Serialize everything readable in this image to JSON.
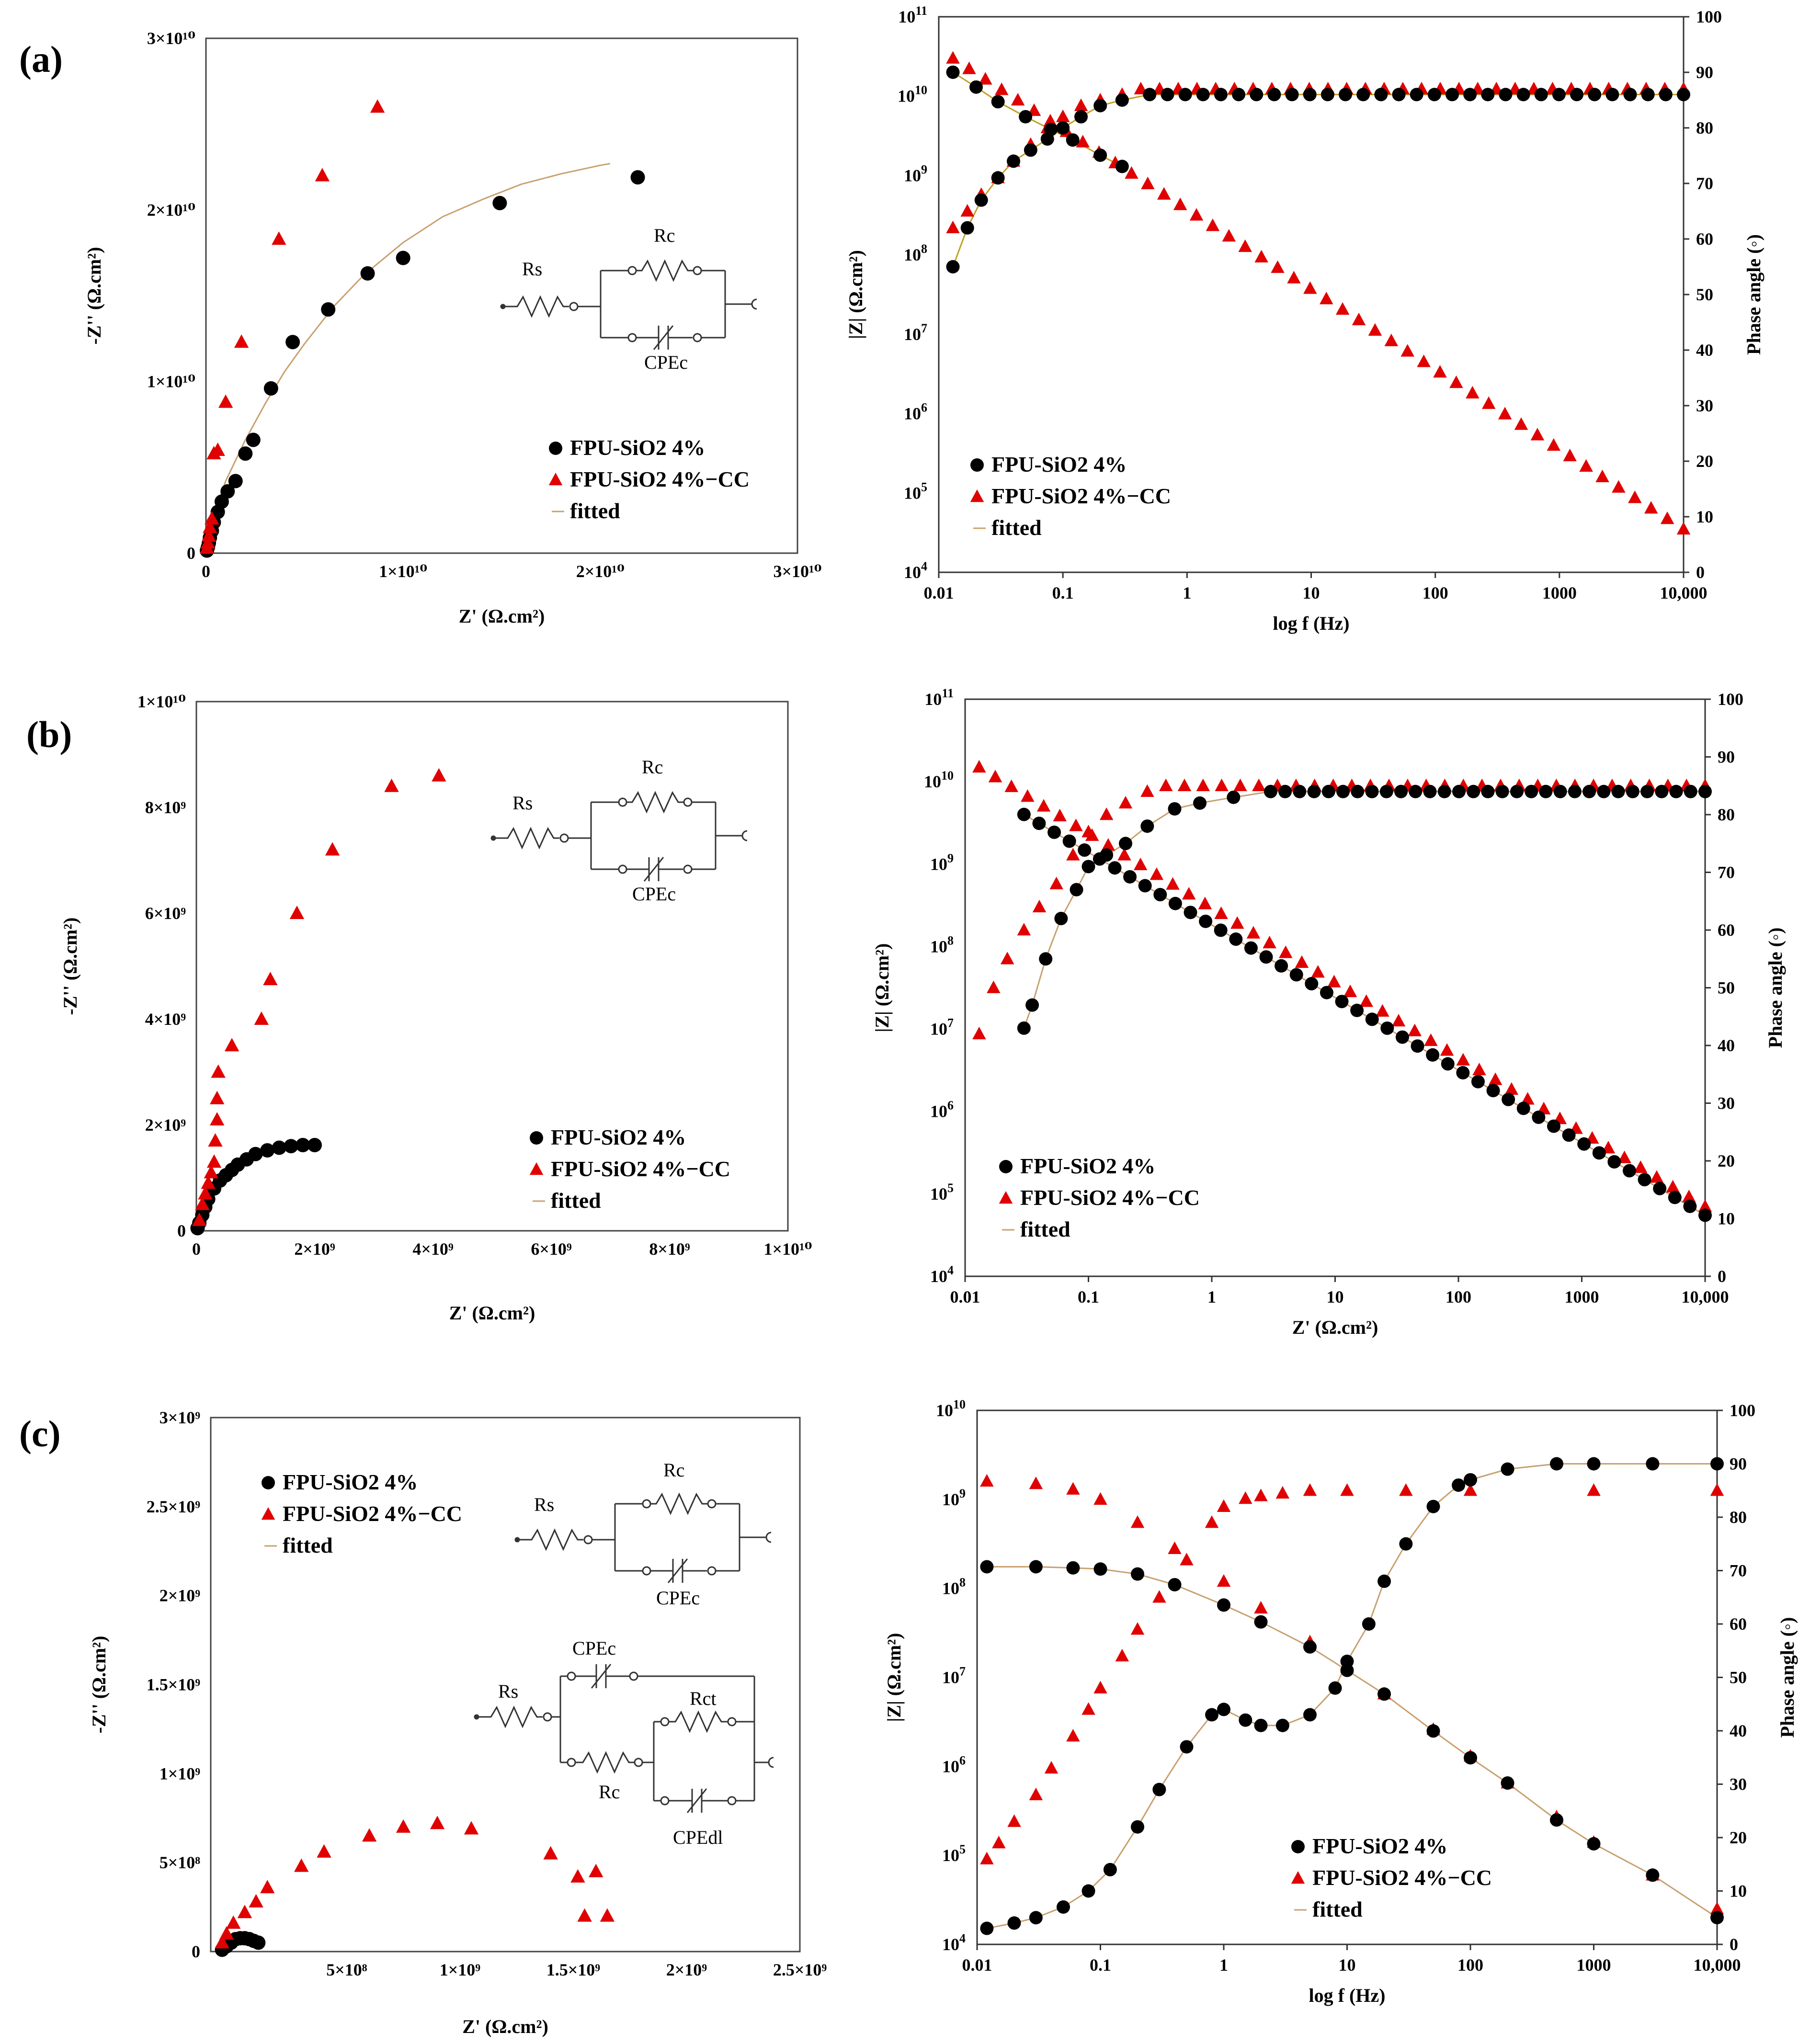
{
  "figure_labels": {
    "a": "(a)",
    "b": "(b)",
    "c": "(c)"
  },
  "legend": {
    "s1": "FPU-SiO2 4%",
    "s2": "FPU-SiO2 4%−CC",
    "fit": "fitted"
  },
  "colors": {
    "s1": "#000000",
    "s2": "#e00000",
    "fit": "#c8a06e",
    "fit_a_bode": "#c0a020",
    "axes": "#000000"
  },
  "circuits": {
    "rc": {
      "rs": "Rs",
      "rc": "Rc",
      "cpe": "CPEc"
    },
    "two_layer": {
      "rs": "Rs",
      "cpec": "CPEc",
      "rct": "Rct",
      "rc": "Rc",
      "cpedl": "CPEdl"
    }
  },
  "chart_data": [
    {
      "id": "a-nyquist",
      "type": "scatter",
      "title": "",
      "xlabel": "Z' (Ω.cm²)",
      "ylabel": "-Z'' (Ω.cm²)",
      "xlim": [
        0,
        30000000000.0
      ],
      "ylim": [
        0,
        30000000000.0
      ],
      "xticks": [
        0,
        10000000000.0,
        20000000000.0,
        30000000000.0
      ],
      "xtick_labels": [
        "0",
        "1×10¹⁰",
        "2×10¹⁰",
        "3×10¹⁰"
      ],
      "yticks": [
        0,
        10000000000.0,
        20000000000.0,
        30000000000.0
      ],
      "ytick_labels": [
        "0",
        "1×10¹⁰",
        "2×10¹⁰",
        "3×10¹⁰"
      ],
      "series": [
        {
          "name": "FPU-SiO2 4%",
          "marker": "circle",
          "x": [
            50000000.0,
            100000000.0,
            150000000.0,
            200000000.0,
            300000000.0,
            400000000.0,
            600000000.0,
            800000000.0,
            1100000000.0,
            1500000000.0,
            2000000000.0,
            2400000000.0,
            3300000000.0,
            4400000000.0,
            6200000000.0,
            8200000000.0,
            10000000000.0,
            14900000000.0,
            21900000000.0
          ],
          "y": [
            150000000.0,
            350000000.0,
            600000000.0,
            900000000.0,
            1300000000.0,
            1800000000.0,
            2400000000.0,
            3000000000.0,
            3600000000.0,
            4200000000.0,
            5800000000.0,
            6600000000.0,
            9600000000.0,
            12300000000.0,
            14200000000.0,
            16300000000.0,
            17200000000.0,
            20400000000.0,
            21900000000.0
          ]
        },
        {
          "name": "FPU-SiO2 4%−CC",
          "marker": "triangle",
          "x": [
            50000000.0,
            100000000.0,
            150000000.0,
            200000000.0,
            300000000.0,
            400000000.0,
            600000000.0,
            1000000000.0,
            1800000000.0,
            3700000000.0,
            5900000000.0,
            8700000000.0
          ],
          "y": [
            300000000.0,
            600000000.0,
            1000000000.0,
            1500000000.0,
            2000000000.0,
            5800000000.0,
            6000000000.0,
            8800000000.0,
            12300000000.0,
            18300000000.0,
            22000000000.0,
            26000000000.0
          ]
        },
        {
          "name": "fitted",
          "marker": "line",
          "x": [
            0,
            200000000.0,
            500000000.0,
            1000000000.0,
            2000000000.0,
            3000000000.0,
            4000000000.0,
            5000000000.0,
            6500000000.0,
            8000000000.0,
            10000000000.0,
            12000000000.0,
            14000000000.0,
            16000000000.0,
            18000000000.0,
            20000000000.0,
            20500000000.0
          ],
          "y": [
            0,
            1200000000.0,
            2500000000.0,
            4200000000.0,
            6600000000.0,
            8700000000.0,
            10600000000.0,
            12200000000.0,
            14400000000.0,
            16200000000.0,
            18100000000.0,
            19600000000.0,
            20600000000.0,
            21500000000.0,
            22100000000.0,
            22600000000.0,
            22700000000.0
          ]
        }
      ]
    },
    {
      "id": "a-bode",
      "type": "scatter",
      "title": "",
      "xlabel": "log f (Hz)",
      "ylabel": "|Z| (Ω.cm²)",
      "y2label": "Phase angle (◦)",
      "xlim": [
        0.01,
        10000
      ],
      "ylim": [
        10000,
        100000000000.0
      ],
      "y2lim": [
        0,
        100
      ],
      "xtick_labels": [
        "0.01",
        "0.1",
        "1",
        "10",
        "100",
        "1000",
        "10,000"
      ],
      "y2ticks": [
        0,
        10,
        20,
        30,
        40,
        50,
        60,
        70,
        80,
        90,
        100
      ],
      "series": [
        {
          "name": "FPU-SiO2 4% |Z|",
          "marker": "circle",
          "axis": "left",
          "z0": 20000000000.0,
          "z1": 70000.0,
          "x": [
            0.013,
            0.02,
            0.03,
            0.05,
            0.08,
            0.12,
            0.2,
            0.3
          ],
          "y": [
            20000000000.0,
            13000000000.0,
            8500000000.0,
            5500000000.0,
            3800000000.0,
            2800000000.0,
            1800000000.0,
            1300000000.0
          ]
        },
        {
          "name": "FPU-SiO2 4%−CC |Z|",
          "marker": "triangle",
          "axis": "left",
          "z0": 30000000000.0,
          "z1": 35000.0
        },
        {
          "name": "FPU-SiO2 4% phase",
          "marker": "circle",
          "axis": "right",
          "x": [
            0.013,
            0.017,
            0.022,
            0.03,
            0.04,
            0.055,
            0.075,
            0.1,
            0.14,
            0.2,
            0.3,
            0.5
          ],
          "y": [
            55,
            62,
            67,
            71,
            74,
            76,
            78,
            80,
            82,
            84,
            85,
            86
          ],
          "plateau": 86
        },
        {
          "name": "FPU-SiO2 4%−CC phase",
          "marker": "triangle",
          "axis": "right",
          "x": [
            0.013,
            0.017,
            0.022,
            0.03,
            0.04,
            0.055,
            0.075,
            0.1,
            0.14,
            0.2,
            0.3
          ],
          "y": [
            62,
            65,
            68,
            71,
            74,
            77,
            80,
            82,
            84,
            85,
            86
          ],
          "plateau": 87
        },
        {
          "name": "fitted",
          "marker": "line"
        }
      ]
    },
    {
      "id": "b-nyquist",
      "type": "scatter",
      "title": "",
      "xlabel": "Z' (Ω.cm²)",
      "ylabel": "-Z'' (Ω.cm²)",
      "xlim": [
        0,
        10000000000.0
      ],
      "ylim": [
        0,
        10000000000.0
      ],
      "xticks": [
        0,
        2000000000.0,
        4000000000.0,
        6000000000.0,
        8000000000.0,
        10000000000.0
      ],
      "xtick_labels": [
        "0",
        "2×10⁹",
        "4×10⁹",
        "6×10⁹",
        "8×10⁹",
        "1×10¹⁰"
      ],
      "yticks": [
        0,
        2000000000.0,
        4000000000.0,
        6000000000.0,
        8000000000.0,
        10000000000.0
      ],
      "ytick_labels": [
        "0",
        "2×10⁹",
        "4×10⁹",
        "6×10⁹",
        "8×10⁹",
        "1×10¹⁰"
      ],
      "series": [
        {
          "name": "FPU-SiO2 4%",
          "marker": "circle",
          "x": [
            20000000.0,
            50000000.0,
            100000000.0,
            150000000.0,
            200000000.0,
            300000000.0,
            400000000.0,
            500000000.0,
            600000000.0,
            700000000.0,
            850000000.0,
            1000000000.0,
            1200000000.0,
            1400000000.0,
            1600000000.0,
            1800000000.0,
            2000000000.0
          ],
          "y": [
            50000000.0,
            150000000.0,
            300000000.0,
            450000000.0,
            600000000.0,
            800000000.0,
            950000000.0,
            1050000000.0,
            1150000000.0,
            1250000000.0,
            1350000000.0,
            1450000000.0,
            1520000000.0,
            1570000000.0,
            1600000000.0,
            1620000000.0,
            1620000000.0
          ]
        },
        {
          "name": "FPU-SiO2 4%−CC",
          "marker": "triangle",
          "x": [
            50000000.0,
            100000000.0,
            150000000.0,
            200000000.0,
            250000000.0,
            300000000.0,
            320000000.0,
            350000000.0,
            350000000.0,
            370000000.0,
            600000000.0,
            1100000000.0,
            1250000000.0,
            1700000000.0,
            2300000000.0,
            3300000000.0,
            4100000000.0
          ],
          "y": [
            200000000.0,
            500000000.0,
            700000000.0,
            900000000.0,
            1100000000.0,
            1300000000.0,
            1700000000.0,
            2100000000.0,
            2500000000.0,
            3000000000.0,
            3500000000.0,
            4000000000.0,
            4750000000.0,
            6000000000.0,
            7200000000.0,
            8400000000.0,
            8600000000.0
          ]
        },
        {
          "name": "fitted",
          "marker": "line",
          "x": [
            0,
            100000000.0,
            200000000.0,
            400000000.0,
            600000000.0,
            800000000.0,
            1000000000.0,
            1200000000.0,
            1400000000.0,
            1600000000.0,
            1800000000.0,
            2000000000.0
          ],
          "y": [
            0,
            300000000.0,
            580000000.0,
            940000000.0,
            1140000000.0,
            1300000000.0,
            1420000000.0,
            1500000000.0,
            1560000000.0,
            1590000000.0,
            1600000000.0,
            1600000000.0
          ]
        }
      ]
    },
    {
      "id": "b-bode",
      "type": "scatter",
      "title": "",
      "xlabel": "Z' (Ω.cm²)",
      "ylabel": "|Z| (Ω.cm²)",
      "y2label": "Phase angle (◦)",
      "xlim": [
        0.01,
        10000
      ],
      "ylim": [
        10000,
        100000000000.0
      ],
      "y2lim": [
        0,
        100
      ],
      "xtick_labels": [
        "0.01",
        "0.1",
        "1",
        "10",
        "100",
        "1000",
        "10,000"
      ],
      "y2ticks": [
        0,
        10,
        20,
        30,
        40,
        50,
        60,
        70,
        80,
        90,
        100
      ],
      "series": [
        {
          "name": "FPU-SiO2 4% |Z|",
          "marker": "circle",
          "axis": "left",
          "z0": 4000000000.0,
          "z1": 55000.0,
          "f0": 0.03
        },
        {
          "name": "FPU-SiO2 4%−CC |Z|",
          "marker": "triangle",
          "axis": "left",
          "z0": 15000000000.0,
          "z1": 70000.0,
          "f0": 0.013
        },
        {
          "name": "FPU-SiO2 4% phase",
          "marker": "circle",
          "axis": "right",
          "x": [
            0.03,
            0.035,
            0.045,
            0.06,
            0.08,
            0.1,
            0.14,
            0.2,
            0.3,
            0.5,
            0.8,
            1.5,
            3
          ],
          "y": [
            43,
            47,
            55,
            62,
            67,
            71,
            73,
            75,
            78,
            81,
            82,
            83,
            84
          ],
          "plateau": 84
        },
        {
          "name": "FPU-SiO2 4%−CC phase",
          "marker": "triangle",
          "axis": "right",
          "x": [
            0.013,
            0.017,
            0.022,
            0.03,
            0.04,
            0.055,
            0.075,
            0.1,
            0.14,
            0.2,
            0.3
          ],
          "y": [
            42,
            50,
            55,
            60,
            64,
            68,
            73,
            77,
            80,
            82,
            84
          ],
          "plateau": 85
        },
        {
          "name": "fitted",
          "marker": "line"
        }
      ]
    },
    {
      "id": "c-nyquist",
      "type": "scatter",
      "title": "",
      "xlabel": "Z' (Ω.cm²)",
      "ylabel": "-Z'' (Ω.cm²)",
      "xlim": [
        -100000000.0,
        2500000000.0
      ],
      "ylim": [
        0,
        3000000000.0
      ],
      "xticks": [
        500000000.0,
        1000000000.0,
        1500000000.0,
        2000000000.0,
        2500000000.0
      ],
      "xtick_labels": [
        "5×10⁸",
        "1×10⁹",
        "1.5×10⁹",
        "2×10⁹",
        "2.5×10⁹"
      ],
      "yticks": [
        0,
        500000000.0,
        1000000000.0,
        1500000000.0,
        2000000000.0,
        2500000000.0,
        3000000000.0
      ],
      "ytick_labels": [
        "0",
        "5×10⁸",
        "1×10⁹",
        "1.5×10⁹",
        "2×10⁹",
        "2.5×10⁹",
        "3×10⁹"
      ],
      "series": [
        {
          "name": "FPU-SiO2 4%",
          "marker": "circle",
          "x": [
            -50000000.0,
            -30000000.0,
            -10000000.0,
            10000000.0,
            30000000.0,
            50000000.0,
            70000000.0,
            90000000.0,
            110000000.0
          ],
          "y": [
            10000000.0,
            30000000.0,
            50000000.0,
            70000000.0,
            75000000.0,
            75000000.0,
            70000000.0,
            60000000.0,
            50000000.0
          ]
        },
        {
          "name": "FPU-SiO2 4%−CC",
          "marker": "triangle",
          "x": [
            -50000000.0,
            -30000000.0,
            0.0,
            50000000.0,
            100000000.0,
            150000000.0,
            300000000.0,
            400000000.0,
            600000000.0,
            750000000.0,
            900000000.0,
            1050000000.0,
            1400000000.0,
            1520000000.0,
            1600000000.0,
            1550000000.0,
            1650000000.0
          ],
          "y": [
            50000000.0,
            100000000.0,
            160000000.0,
            220000000.0,
            280000000.0,
            360000000.0,
            480000000.0,
            560000000.0,
            650000000.0,
            700000000.0,
            720000000.0,
            690000000.0,
            550000000.0,
            420000000.0,
            450000000.0,
            200000000.0,
            200000000.0
          ]
        }
      ]
    },
    {
      "id": "c-bode",
      "type": "scatter",
      "title": "",
      "xlabel": "log f (Hz)",
      "ylabel": "|Z| (Ω.cm²)",
      "y2label": "Phase angle (◦)",
      "xlim": [
        0.01,
        10000
      ],
      "ylim": [
        10000,
        10000000000.0
      ],
      "y2lim": [
        0,
        100
      ],
      "xtick_labels": [
        "0.01",
        "0.1",
        "1",
        "10",
        "100",
        "1000",
        "10,000"
      ],
      "y2ticks": [
        0,
        10,
        20,
        30,
        40,
        50,
        60,
        70,
        80,
        90,
        100
      ],
      "series": [
        {
          "name": "FPU-SiO2 4% |Z|",
          "marker": "circle",
          "axis": "left",
          "x": [
            0.012,
            0.03,
            0.06,
            0.1,
            0.2,
            0.4,
            1,
            2,
            5,
            10,
            20,
            50,
            100,
            200,
            500,
            1000,
            3000,
            10000
          ],
          "y": [
            175000000.0,
            175000000.0,
            170000000.0,
            165000000.0,
            145000000.0,
            110000000.0,
            65000000.0,
            42000000.0,
            22000000.0,
            12000000.0,
            6500000.0,
            2500000.0,
            1250000.0,
            650000.0,
            250000.0,
            135000.0,
            60000.0,
            20000.0
          ]
        },
        {
          "name": "FPU-SiO2 4%−CC |Z|",
          "marker": "triangle",
          "axis": "left",
          "x": [
            0.012,
            0.03,
            0.06,
            0.1,
            0.2,
            0.4,
            1,
            2,
            5,
            10,
            20,
            50,
            100,
            200,
            500,
            1000,
            3000,
            10000
          ],
          "y": [
            1600000000.0,
            1500000000.0,
            1300000000.0,
            1000000000.0,
            550000000.0,
            280000000.0,
            120000000.0,
            60000000.0,
            25000000.0,
            13000000.0,
            6500000.0,
            2600000.0,
            1300000.0,
            650000.0,
            270000.0,
            140000.0,
            60000.0,
            25000.0
          ]
        },
        {
          "name": "FPU-SiO2 4% phase",
          "marker": "circle",
          "axis": "right",
          "x": [
            0.012,
            0.02,
            0.03,
            0.05,
            0.08,
            0.12,
            0.2,
            0.3,
            0.5,
            0.8,
            1,
            1.5,
            2,
            3,
            5,
            8,
            10,
            15,
            20,
            30,
            50,
            80,
            100,
            200,
            500,
            1000,
            3000,
            10000
          ],
          "y": [
            3,
            4,
            5,
            7,
            10,
            14,
            22,
            29,
            37,
            43,
            44,
            42,
            41,
            41,
            43,
            48,
            53,
            60,
            68,
            75,
            82,
            86,
            87,
            89,
            90,
            90,
            90,
            90
          ]
        },
        {
          "name": "FPU-SiO2 4%−CC phase",
          "marker": "triangle",
          "axis": "right",
          "x": [
            0.012,
            0.015,
            0.02,
            0.03,
            0.04,
            0.06,
            0.08,
            0.1,
            0.15,
            0.2,
            0.3,
            0.5,
            0.8,
            1,
            1.5,
            2,
            3,
            5,
            10,
            30,
            100,
            1000,
            10000
          ],
          "y": [
            16,
            19,
            23,
            28,
            33,
            39,
            44,
            48,
            54,
            59,
            65,
            72,
            79,
            82,
            83.5,
            84,
            84.5,
            85,
            85,
            85,
            85,
            85,
            85
          ]
        },
        {
          "name": "fitted",
          "marker": "line"
        }
      ]
    }
  ]
}
